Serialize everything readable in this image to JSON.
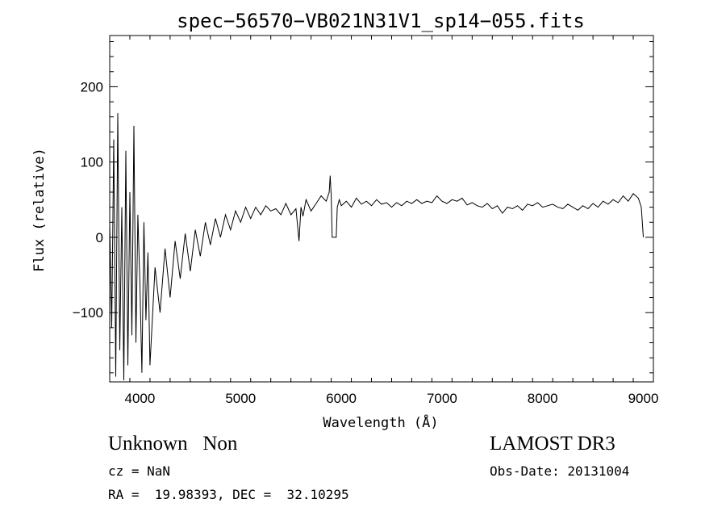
{
  "chart_data": {
    "type": "line",
    "title": "spec−56570−VB021N31V1_sp14−055.fits",
    "xlabel": "Wavelength (Å)",
    "ylabel": "Flux (relative)",
    "xlim": [
      3700,
      9100
    ],
    "ylim": [
      -192,
      268
    ],
    "xticks": [
      {
        "value": 4000,
        "label": "4000"
      },
      {
        "value": 5000,
        "label": "5000"
      },
      {
        "value": 6000,
        "label": "6000"
      },
      {
        "value": 7000,
        "label": "7000"
      },
      {
        "value": 8000,
        "label": "8000"
      },
      {
        "value": 9000,
        "label": "9000"
      }
    ],
    "yticks": [
      {
        "value": -100,
        "label": "−100"
      },
      {
        "value": 0,
        "label": "0"
      },
      {
        "value": 100,
        "label": "100"
      },
      {
        "value": 200,
        "label": "200"
      }
    ],
    "grid": false,
    "series": [
      {
        "color": "#000000",
        "x": [
          3700,
          3720,
          3740,
          3760,
          3780,
          3800,
          3820,
          3840,
          3860,
          3880,
          3900,
          3920,
          3940,
          3960,
          3980,
          4000,
          4020,
          4040,
          4060,
          4080,
          4100,
          4150,
          4200,
          4250,
          4300,
          4350,
          4400,
          4450,
          4500,
          4550,
          4600,
          4650,
          4700,
          4750,
          4800,
          4850,
          4900,
          4950,
          5000,
          5050,
          5100,
          5150,
          5200,
          5250,
          5300,
          5350,
          5400,
          5450,
          5500,
          5550,
          5580,
          5600,
          5620,
          5650,
          5700,
          5750,
          5800,
          5850,
          5880,
          5890,
          5900,
          5910,
          5920,
          5950,
          5960,
          5980,
          6000,
          6050,
          6100,
          6150,
          6200,
          6250,
          6300,
          6350,
          6400,
          6450,
          6500,
          6550,
          6600,
          6650,
          6700,
          6750,
          6800,
          6850,
          6900,
          6950,
          7000,
          7050,
          7100,
          7150,
          7200,
          7250,
          7300,
          7350,
          7400,
          7450,
          7500,
          7550,
          7600,
          7650,
          7700,
          7750,
          7800,
          7850,
          7900,
          7950,
          8000,
          8050,
          8100,
          8150,
          8200,
          8250,
          8300,
          8350,
          8400,
          8450,
          8500,
          8550,
          8600,
          8650,
          8700,
          8750,
          8800,
          8850,
          8900,
          8950,
          8980,
          9000
        ],
        "y": [
          20,
          -120,
          130,
          -185,
          165,
          -150,
          40,
          -190,
          115,
          -170,
          60,
          -130,
          148,
          -140,
          30,
          -60,
          -180,
          20,
          -110,
          -20,
          -170,
          -40,
          -100,
          -15,
          -80,
          -5,
          -55,
          5,
          -45,
          10,
          -25,
          20,
          -10,
          25,
          0,
          30,
          10,
          35,
          20,
          40,
          25,
          40,
          30,
          42,
          35,
          38,
          30,
          45,
          30,
          38,
          -5,
          40,
          28,
          50,
          35,
          45,
          55,
          48,
          60,
          82,
          55,
          0,
          0,
          0,
          40,
          50,
          42,
          48,
          40,
          52,
          44,
          48,
          42,
          50,
          44,
          46,
          40,
          46,
          42,
          48,
          45,
          50,
          45,
          48,
          46,
          55,
          48,
          45,
          50,
          48,
          52,
          43,
          46,
          42,
          40,
          45,
          38,
          42,
          32,
          40,
          38,
          42,
          36,
          44,
          42,
          46,
          40,
          42,
          44,
          40,
          38,
          44,
          40,
          36,
          42,
          38,
          45,
          40,
          48,
          44,
          50,
          46,
          55,
          48,
          58,
          52,
          40,
          0
        ]
      }
    ]
  },
  "info": {
    "class_label": "Unknown",
    "subclass_label": "Non",
    "survey": "LAMOST DR3",
    "cz": "cz = NaN",
    "obs_date": "Obs-Date: 20131004",
    "ra_dec": "RA =  19.98393, DEC =  32.10295"
  }
}
